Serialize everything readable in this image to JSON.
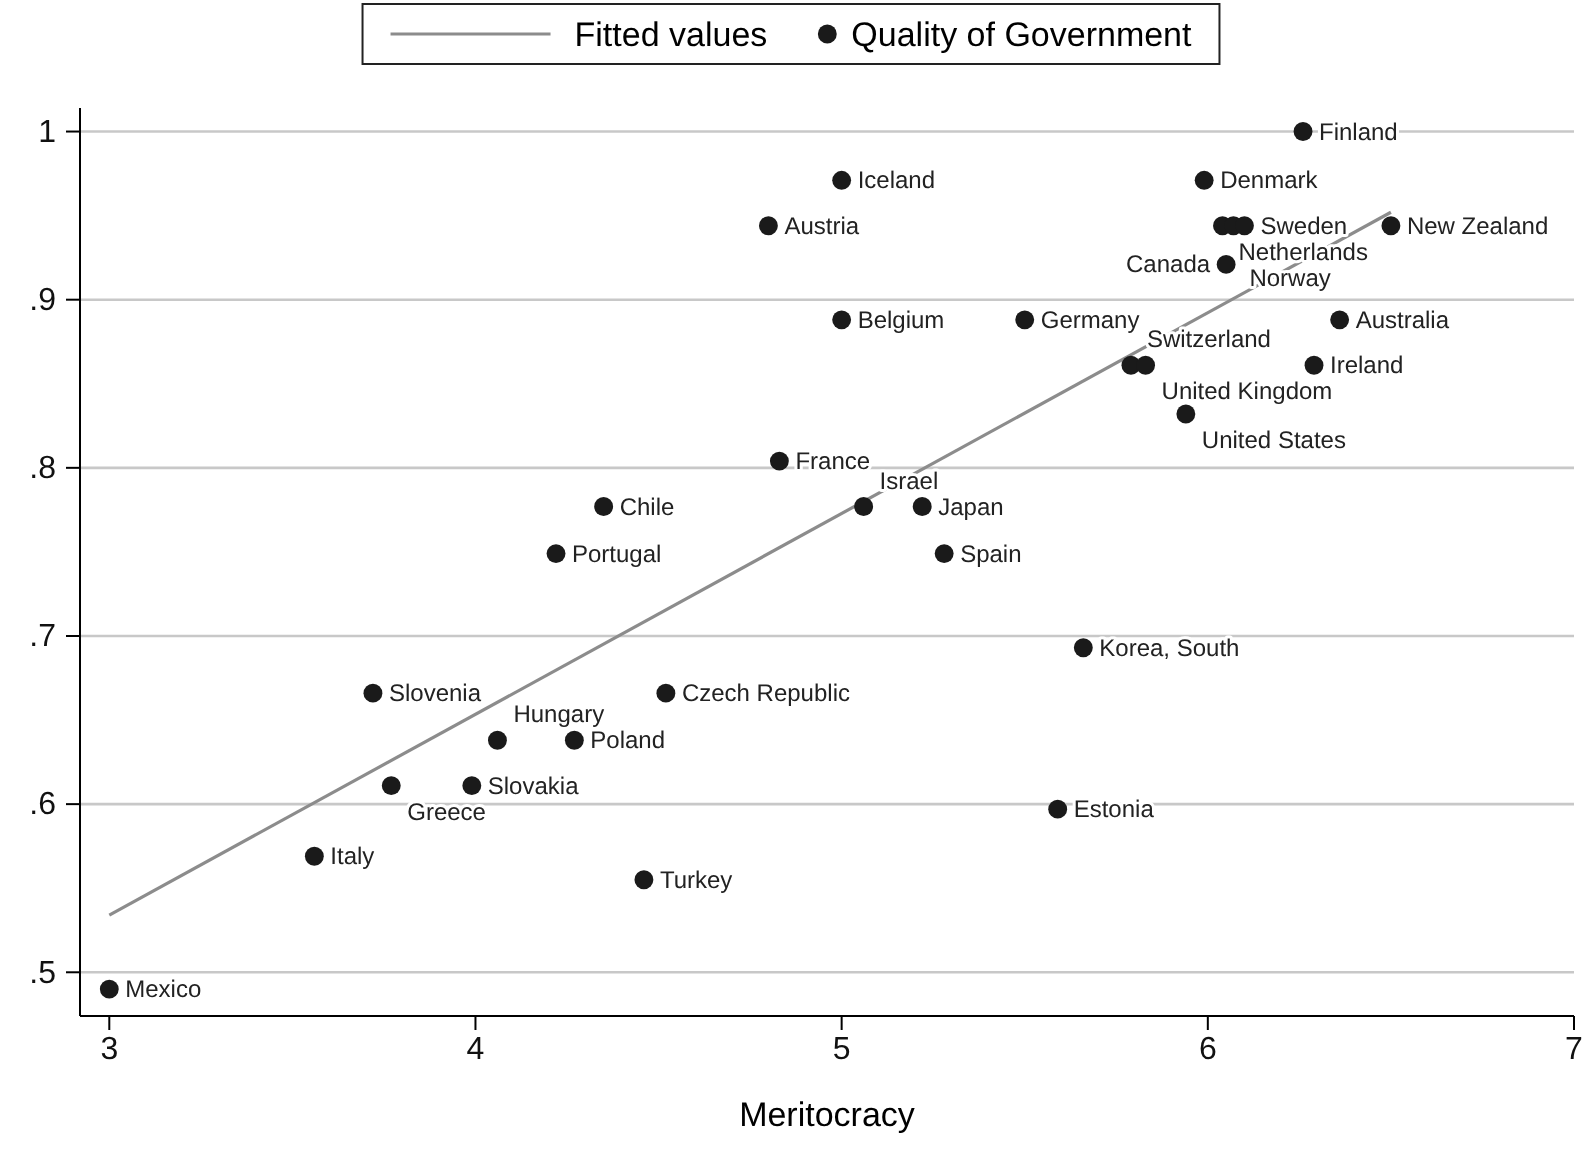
{
  "chart_data": {
    "type": "scatter",
    "xlabel": "Meritocracy",
    "xlim": [
      2.92,
      7
    ],
    "ylim": [
      0.474,
      1.014
    ],
    "xticks": [
      3,
      4,
      5,
      6,
      7
    ],
    "yticks": [
      {
        "value": 0.5,
        "label": ".5"
      },
      {
        "value": 0.6,
        "label": ".6"
      },
      {
        "value": 0.7,
        "label": ".7"
      },
      {
        "value": 0.8,
        "label": ".8"
      },
      {
        "value": 0.9,
        "label": ".9"
      },
      1
    ],
    "grid": "y",
    "legend": "top",
    "marker": "circle",
    "series": [
      {
        "name": "Fitted values",
        "type": "line",
        "color": "#8c8c8c",
        "x": [
          3,
          6.5
        ],
        "values": [
          0.534,
          0.952
        ],
        "line_style": "solid",
        "marker": "none"
      },
      {
        "name": "Quality of Government",
        "type": "scatter",
        "color": "#1a1a1a",
        "x": [
          6.26,
          5.99,
          5.0,
          4.8,
          6.04,
          6.07,
          6.1,
          6.5,
          6.05,
          5.0,
          5.5,
          6.36,
          5.79,
          5.83,
          6.29,
          5.94,
          4.83,
          4.35,
          5.06,
          5.22,
          4.22,
          5.28,
          5.66,
          3.72,
          4.52,
          4.06,
          4.27,
          3.77,
          3.99,
          5.59,
          3.56,
          4.46,
          3.0
        ],
        "values": [
          1.0,
          0.971,
          0.971,
          0.944,
          0.944,
          0.944,
          0.944,
          0.944,
          0.921,
          0.888,
          0.888,
          0.888,
          0.861,
          0.861,
          0.861,
          0.832,
          0.804,
          0.777,
          0.777,
          0.777,
          0.749,
          0.749,
          0.693,
          0.666,
          0.666,
          0.638,
          0.638,
          0.611,
          0.611,
          0.597,
          0.569,
          0.555,
          0.49
        ]
      }
    ],
    "annotations": [
      {
        "text": "Finland",
        "x": 6.26,
        "y": 1.0
      },
      {
        "text": "Denmark",
        "x": 5.99,
        "y": 0.971
      },
      {
        "text": "Iceland",
        "x": 5.0,
        "y": 0.971
      },
      {
        "text": "Austria",
        "x": 4.8,
        "y": 0.944
      },
      {
        "text": "Netherlands",
        "x": 6.04,
        "y": 0.944
      },
      {
        "text": "Norway",
        "x": 6.07,
        "y": 0.944
      },
      {
        "text": "Sweden",
        "x": 6.1,
        "y": 0.944
      },
      {
        "text": "New Zealand",
        "x": 6.5,
        "y": 0.944
      },
      {
        "text": "Canada",
        "x": 6.05,
        "y": 0.921
      },
      {
        "text": "Belgium",
        "x": 5.0,
        "y": 0.888
      },
      {
        "text": "Germany",
        "x": 5.5,
        "y": 0.888
      },
      {
        "text": "Australia",
        "x": 6.36,
        "y": 0.888
      },
      {
        "text": "Switzerland",
        "x": 5.79,
        "y": 0.861
      },
      {
        "text": "United Kingdom",
        "x": 5.83,
        "y": 0.861
      },
      {
        "text": "Ireland",
        "x": 6.29,
        "y": 0.861
      },
      {
        "text": "United States",
        "x": 5.94,
        "y": 0.832
      },
      {
        "text": "France",
        "x": 4.83,
        "y": 0.804
      },
      {
        "text": "Chile",
        "x": 4.35,
        "y": 0.777
      },
      {
        "text": "Israel",
        "x": 5.06,
        "y": 0.777
      },
      {
        "text": "Japan",
        "x": 5.22,
        "y": 0.777
      },
      {
        "text": "Portugal",
        "x": 4.22,
        "y": 0.749
      },
      {
        "text": "Spain",
        "x": 5.28,
        "y": 0.749
      },
      {
        "text": "Korea, South",
        "x": 5.66,
        "y": 0.693
      },
      {
        "text": "Slovenia",
        "x": 3.72,
        "y": 0.666
      },
      {
        "text": "Czech Republic",
        "x": 4.52,
        "y": 0.666
      },
      {
        "text": "Hungary",
        "x": 4.06,
        "y": 0.638
      },
      {
        "text": "Poland",
        "x": 4.27,
        "y": 0.638
      },
      {
        "text": "Greece",
        "x": 3.77,
        "y": 0.611
      },
      {
        "text": "Slovakia",
        "x": 3.99,
        "y": 0.611
      },
      {
        "text": "Estonia",
        "x": 5.59,
        "y": 0.597
      },
      {
        "text": "Italy",
        "x": 3.56,
        "y": 0.569
      },
      {
        "text": "Turkey",
        "x": 4.46,
        "y": 0.555
      },
      {
        "text": "Mexico",
        "x": 3.0,
        "y": 0.49
      }
    ]
  }
}
